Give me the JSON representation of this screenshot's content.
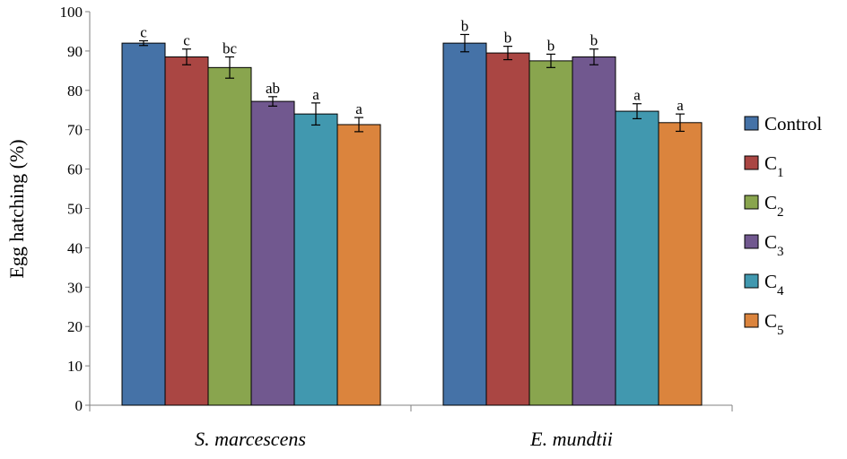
{
  "chart_data": {
    "type": "bar",
    "title": "",
    "xlabel": "",
    "ylabel": "Egg hatching (%)",
    "ylim": [
      0,
      100
    ],
    "yticks": [
      0,
      10,
      20,
      30,
      40,
      50,
      60,
      70,
      80,
      90,
      100
    ],
    "grid": false,
    "legend_position": "right",
    "categories": [
      "S. marcescens",
      "E. mundtii"
    ],
    "series": [
      {
        "name": "Control",
        "sub": "",
        "color": "#4572a7",
        "values": [
          92,
          92
        ],
        "errors": [
          0.6,
          2.2
        ],
        "letters": [
          "c",
          "b"
        ]
      },
      {
        "name": "C",
        "sub": "1",
        "color": "#aa4643",
        "values": [
          88.5,
          89.5
        ],
        "errors": [
          2.0,
          1.7
        ],
        "letters": [
          "c",
          "b"
        ]
      },
      {
        "name": "C",
        "sub": "2",
        "color": "#89a54e",
        "values": [
          85.8,
          87.5
        ],
        "errors": [
          2.7,
          1.7
        ],
        "letters": [
          "bc",
          "b"
        ]
      },
      {
        "name": "C",
        "sub": "3",
        "color": "#71588f",
        "values": [
          77.2,
          88.5
        ],
        "errors": [
          1.2,
          2.0
        ],
        "letters": [
          "ab",
          "b"
        ]
      },
      {
        "name": "C",
        "sub": "4",
        "color": "#4198af",
        "values": [
          74,
          74.7
        ],
        "errors": [
          2.8,
          1.9
        ],
        "letters": [
          "a",
          "a"
        ]
      },
      {
        "name": "C",
        "sub": "5",
        "color": "#db843d",
        "values": [
          71.3,
          71.8
        ],
        "errors": [
          1.8,
          2.2
        ],
        "letters": [
          "a",
          "a"
        ]
      }
    ]
  }
}
